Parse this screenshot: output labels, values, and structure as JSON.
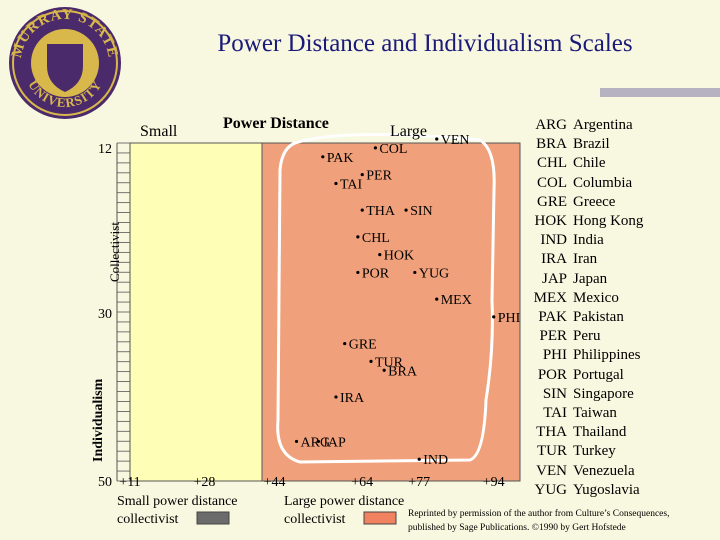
{
  "slide": {
    "title": "Power Distance and Individualism Scales",
    "logo_text_top": "MURRAY STATE",
    "logo_text_bottom": "UNIVERSITY",
    "credit_line1": "Reprinted by permission of the author from Culture’s Consequences,",
    "credit_line2": "published by Sage Publications. ©1990 by Gert Hofstede"
  },
  "colors": {
    "small_region": "#fefeb6",
    "large_region": "#f0a07a",
    "title": "#1a1a7a",
    "swatch_small": "#6b6b6b",
    "swatch_large": "#f08260",
    "logo_purple": "#4a2a6b",
    "logo_gold": "#d8b84a"
  },
  "chart_data": {
    "type": "scatter",
    "title": "Power Distance",
    "x_label_small": "Small",
    "x_label_large": "Large",
    "y_label": "Individualism",
    "y_sub_label": "Collectivist",
    "x_ticks": [
      "+11",
      "+28",
      "+44",
      "+64",
      "+77",
      "+94"
    ],
    "y_ticks": [
      "12",
      "30",
      "50"
    ],
    "region_small_label": [
      "Small power distance",
      "collectivist"
    ],
    "region_large_label": [
      "Large power distance",
      "collectivist"
    ],
    "points": [
      {
        "label": "PAK",
        "x": 55,
        "y": 14
      },
      {
        "label": "COL",
        "x": 67,
        "y": 13
      },
      {
        "label": "VEN",
        "x": 81,
        "y": 12
      },
      {
        "label": "TAI",
        "x": 58,
        "y": 17
      },
      {
        "label": "PER",
        "x": 64,
        "y": 16
      },
      {
        "label": "THA",
        "x": 64,
        "y": 20
      },
      {
        "label": "SIN",
        "x": 74,
        "y": 20
      },
      {
        "label": "CHL",
        "x": 63,
        "y": 23
      },
      {
        "label": "POR",
        "x": 63,
        "y": 27
      },
      {
        "label": "HOK",
        "x": 68,
        "y": 25
      },
      {
        "label": "YUG",
        "x": 76,
        "y": 27
      },
      {
        "label": "MEX",
        "x": 81,
        "y": 30
      },
      {
        "label": "PHI",
        "x": 94,
        "y": 32
      },
      {
        "label": "GRE",
        "x": 60,
        "y": 35
      },
      {
        "label": "TUR",
        "x": 66,
        "y": 37
      },
      {
        "label": "BRA",
        "x": 69,
        "y": 38
      },
      {
        "label": "IRA",
        "x": 58,
        "y": 41
      },
      {
        "label": "ARG",
        "x": 49,
        "y": 46
      },
      {
        "label": "JAP",
        "x": 54,
        "y": 46
      },
      {
        "label": "IND",
        "x": 77,
        "y": 48
      }
    ]
  },
  "legend": [
    {
      "code": "ARG",
      "name": "Argentina"
    },
    {
      "code": "BRA",
      "name": "Brazil"
    },
    {
      "code": "CHL",
      "name": "Chile"
    },
    {
      "code": "COL",
      "name": "Columbia"
    },
    {
      "code": "GRE",
      "name": "Greece"
    },
    {
      "code": "HOK",
      "name": "Hong Kong"
    },
    {
      "code": "IND",
      "name": "India"
    },
    {
      "code": "IRA",
      "name": "Iran"
    },
    {
      "code": "JAP",
      "name": "Japan"
    },
    {
      "code": "MEX",
      "name": "Mexico"
    },
    {
      "code": "PAK",
      "name": "Pakistan"
    },
    {
      "code": "PER",
      "name": "Peru"
    },
    {
      "code": "PHI",
      "name": "Philippines"
    },
    {
      "code": "POR",
      "name": "Portugal"
    },
    {
      "code": "SIN",
      "name": "Singapore"
    },
    {
      "code": "TAI",
      "name": "Taiwan"
    },
    {
      "code": "THA",
      "name": "Thailand"
    },
    {
      "code": "TUR",
      "name": "Turkey"
    },
    {
      "code": "VEN",
      "name": "Venezuela"
    },
    {
      "code": "YUG",
      "name": "Yugoslavia"
    }
  ]
}
